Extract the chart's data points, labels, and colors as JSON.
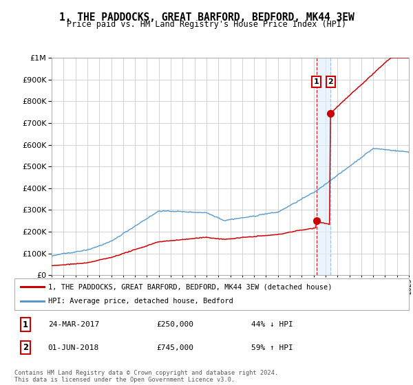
{
  "title": "1, THE PADDOCKS, GREAT BARFORD, BEDFORD, MK44 3EW",
  "subtitle": "Price paid vs. HM Land Registry's House Price Index (HPI)",
  "ylim": [
    0,
    1000000
  ],
  "yticks": [
    0,
    100000,
    200000,
    300000,
    400000,
    500000,
    600000,
    700000,
    800000,
    900000,
    1000000
  ],
  "ytick_labels": [
    "£0",
    "£100K",
    "£200K",
    "£300K",
    "£400K",
    "£500K",
    "£600K",
    "£700K",
    "£800K",
    "£900K",
    "£1M"
  ],
  "hpi_color": "#5599cc",
  "price_color": "#cc0000",
  "date1": 2017.23,
  "date2": 2018.42,
  "marker1_price": 250000,
  "marker2_price": 745000,
  "legend_line1": "1, THE PADDOCKS, GREAT BARFORD, BEDFORD, MK44 3EW (detached house)",
  "legend_line2": "HPI: Average price, detached house, Bedford",
  "table_row1_date": "24-MAR-2017",
  "table_row1_price": "£250,000",
  "table_row1_pct": "44% ↓ HPI",
  "table_row2_date": "01-JUN-2018",
  "table_row2_price": "£745,000",
  "table_row2_pct": "59% ↑ HPI",
  "footnote": "Contains HM Land Registry data © Crown copyright and database right 2024.\nThis data is licensed under the Open Government Licence v3.0.",
  "bg_color": "#ffffff",
  "grid_color": "#cccccc"
}
